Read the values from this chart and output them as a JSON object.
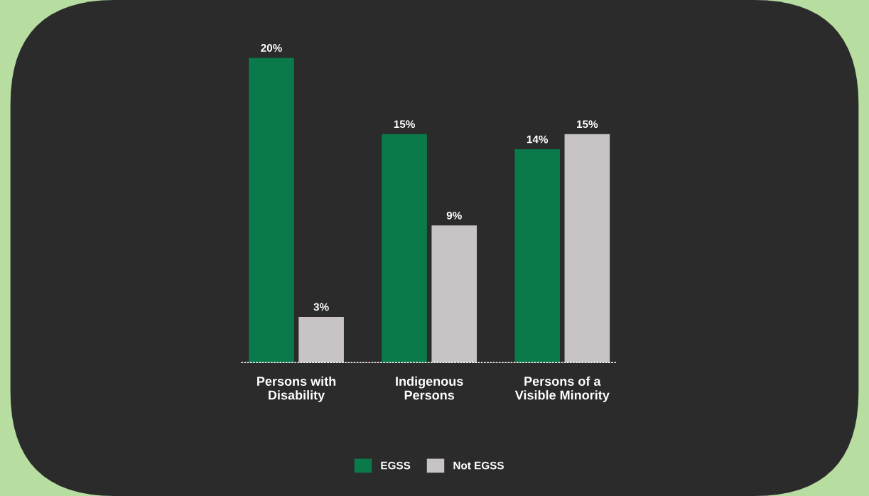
{
  "chart_data": {
    "type": "bar",
    "categories": [
      "Persons with\nDisability",
      "Indigenous\nPersons",
      "Persons of a\nVisible Minority"
    ],
    "series": [
      {
        "name": "EGSS",
        "color": "#0a7a4a",
        "values": [
          20,
          15,
          14
        ],
        "value_labels": [
          "20%",
          "15%",
          "14%"
        ]
      },
      {
        "name": "Not EGSS",
        "color": "#c8c4c5",
        "values": [
          3,
          9,
          15
        ],
        "value_labels": [
          "3%",
          "9%",
          "15%"
        ]
      }
    ],
    "legend": "bottom",
    "grid": false
  }
}
